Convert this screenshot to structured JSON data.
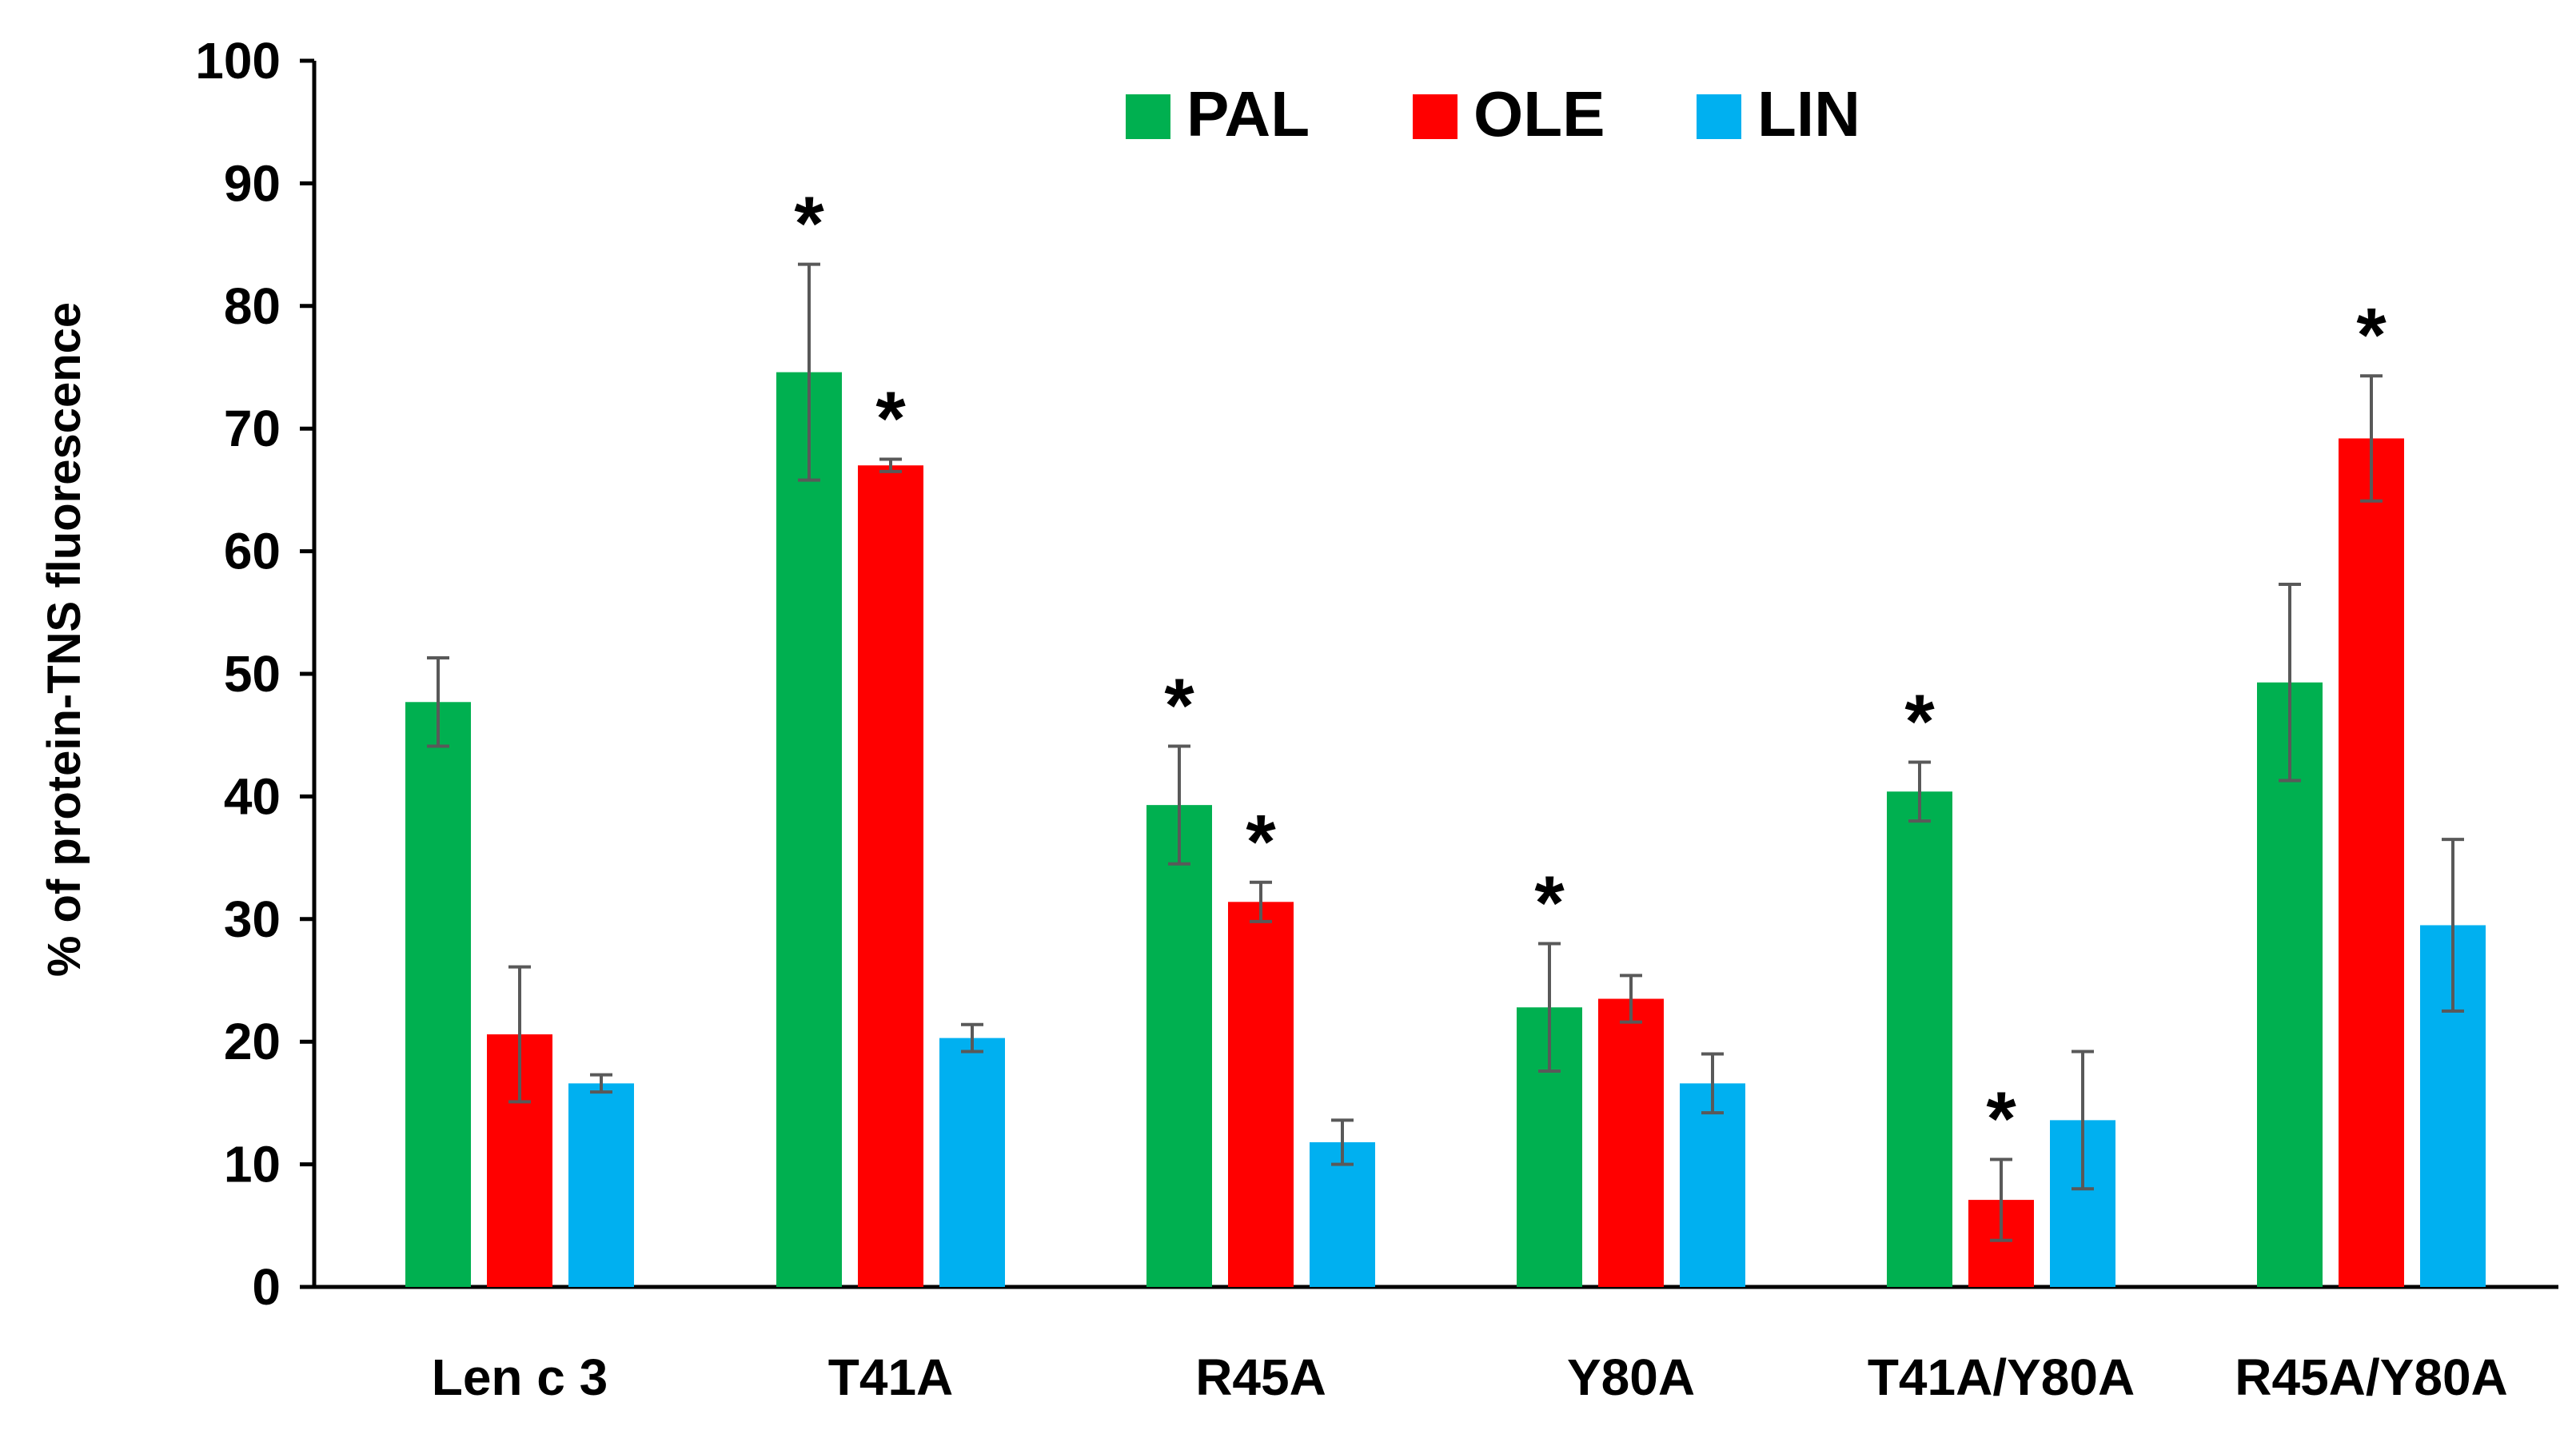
{
  "chart_data": {
    "type": "bar",
    "title": "",
    "xlabel": "",
    "ylabel": "% of protein-TNS fluorescence",
    "ylim": [
      0,
      100
    ],
    "yticks": [
      "0",
      "10",
      "20",
      "30",
      "40",
      "50",
      "60",
      "70",
      "80",
      "90",
      "100"
    ],
    "grid": false,
    "legend_position": "top-center",
    "categories": [
      "Len c 3",
      "T41A",
      "R45A",
      "Y80A",
      "T41A/Y80A",
      "R45A/Y80A"
    ],
    "series": [
      {
        "name": "PAL",
        "color": "#00b050",
        "values": [
          47.7,
          74.6,
          39.3,
          22.8,
          40.4,
          49.3
        ],
        "errors": [
          3.6,
          8.8,
          4.8,
          5.2,
          2.4,
          8.0
        ],
        "significant": [
          false,
          true,
          true,
          true,
          true,
          false
        ]
      },
      {
        "name": "OLE",
        "color": "#ff0000",
        "values": [
          20.6,
          67.0,
          31.4,
          23.5,
          7.1,
          69.2
        ],
        "errors": [
          5.5,
          0.5,
          1.6,
          1.9,
          3.3,
          5.1
        ],
        "significant": [
          false,
          true,
          true,
          false,
          true,
          true
        ]
      },
      {
        "name": "LIN",
        "color": "#00b0f0",
        "values": [
          16.6,
          20.3,
          11.8,
          16.6,
          13.6,
          29.5
        ],
        "errors": [
          0.7,
          1.1,
          1.8,
          2.4,
          5.6,
          7.0
        ],
        "significant": [
          false,
          false,
          false,
          false,
          false,
          false
        ]
      }
    ],
    "significance_marker": "*"
  }
}
